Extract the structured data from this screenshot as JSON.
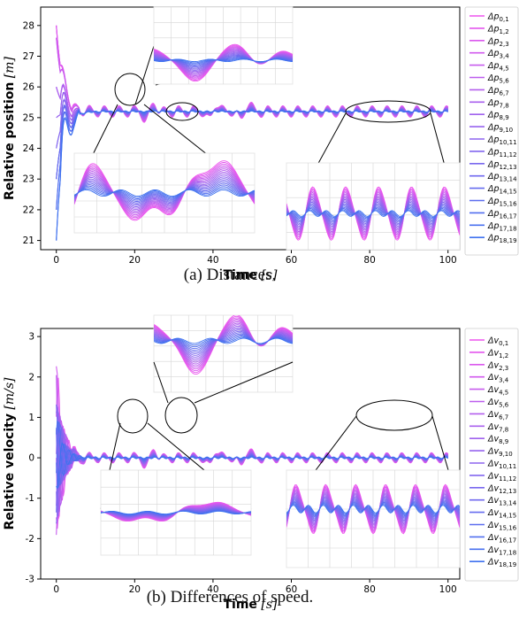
{
  "chart_data": [
    {
      "type": "line",
      "title": "",
      "caption": "(a) Distances.",
      "xlabel_main": "Time",
      "xlabel_unit": "[s]",
      "ylabel_main": "Relative position",
      "ylabel_unit": "[m]",
      "xlim": [
        -4,
        103
      ],
      "ylim": [
        20.7,
        28.6
      ],
      "xticks": [
        0,
        20,
        40,
        60,
        80,
        100
      ],
      "yticks": [
        21,
        22,
        23,
        24,
        25,
        26,
        27,
        28
      ],
      "grid": false,
      "legend_position": "right",
      "legend_symbol": "Δp",
      "legend_indices": [
        "0,1",
        "1,2",
        "2,3",
        "3,4",
        "4,5",
        "5,6",
        "6,7",
        "7,8",
        "8,9",
        "9,10",
        "10,11",
        "11,12",
        "12,13",
        "13,14",
        "14,15",
        "15,16",
        "16,17",
        "17,18",
        "18,19"
      ],
      "steady_value": 25.2,
      "initial_values": [
        28.0,
        27.6,
        26.0,
        25.0,
        24.0,
        23.0,
        22.0,
        21.0
      ],
      "transient_peak": 26.9,
      "transient_end_time": 6,
      "oscillation_period": 3.8,
      "oscillation_amplitude": 0.18,
      "disturbance_times": [
        24,
        40,
        48
      ],
      "zoom_regions": [
        {
          "x": [
            20,
            28
          ],
          "y": [
            24.8,
            26.1
          ]
        },
        {
          "x": [
            34,
            44
          ],
          "y": [
            24.95,
            25.45
          ]
        },
        {
          "x": [
            70,
            90
          ],
          "y": [
            24.95,
            25.55
          ]
        }
      ]
    },
    {
      "type": "line",
      "title": "",
      "caption": "(b) Differences of speed.",
      "xlabel_main": "Time",
      "xlabel_unit": "[s]",
      "ylabel_main": "Relative velocity",
      "ylabel_unit": "[m/s]",
      "xlim": [
        -4,
        103
      ],
      "ylim": [
        -3.0,
        3.2
      ],
      "xticks": [
        0,
        20,
        40,
        60,
        80,
        100
      ],
      "yticks": [
        -3,
        -2,
        -1,
        0,
        1,
        2,
        3
      ],
      "grid": false,
      "legend_position": "right",
      "legend_symbol": "Δv",
      "legend_indices": [
        "0,1",
        "1,2",
        "2,3",
        "3,4",
        "4,5",
        "5,6",
        "6,7",
        "7,8",
        "8,9",
        "9,10",
        "10,11",
        "11,12",
        "12,13",
        "13,14",
        "14,15",
        "15,16",
        "16,17",
        "17,18",
        "18,19"
      ],
      "steady_value": 0,
      "transient_peak": 2.7,
      "transient_trough": -2.2,
      "transient_end_time": 6,
      "oscillation_period": 3.8,
      "oscillation_amplitude": 0.12,
      "disturbance_times": [
        24,
        40,
        48
      ],
      "zoom_regions": [
        {
          "x": [
            20,
            28
          ],
          "y": [
            -0.4,
            0.2
          ]
        },
        {
          "x": [
            36,
            44
          ],
          "y": [
            -0.6,
            0.6
          ]
        },
        {
          "x": [
            68,
            90
          ],
          "y": [
            -0.3,
            0.2
          ]
        }
      ]
    }
  ],
  "colors": {
    "series_start": "#ee55ee",
    "series_end": "#3f72ef",
    "axis": "#000000",
    "zoom_grid": "#d6d6d6",
    "zoom_connector": "#000000"
  }
}
